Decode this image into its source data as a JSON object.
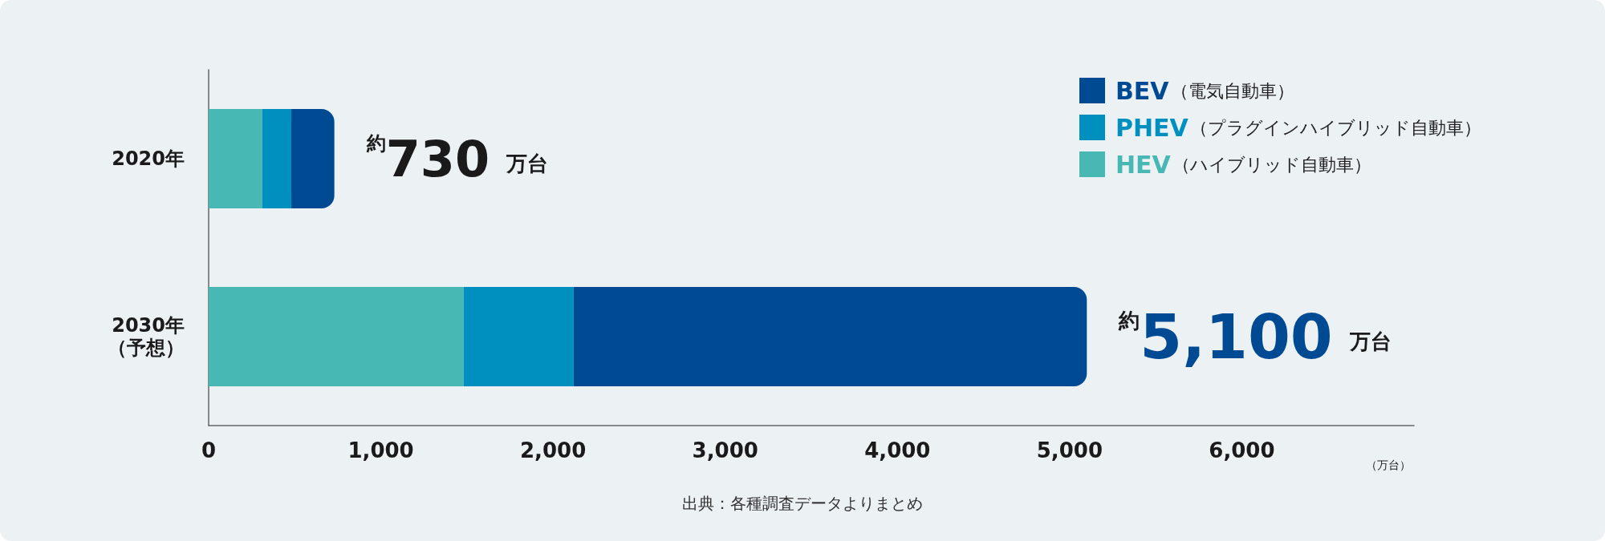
{
  "chart_data": {
    "type": "bar",
    "orientation": "horizontal",
    "stacked": true,
    "categories": [
      "2020年",
      "2030年（予想）"
    ],
    "series": [
      {
        "name": "HEV（ハイブリッド自動車）",
        "color": "#48b8b4",
        "values": [
          310,
          1480
        ]
      },
      {
        "name": "PHEV（プラグインハイブリッド自動車）",
        "color": "#0090c0",
        "values": [
          170,
          640
        ]
      },
      {
        "name": "BEV（電気自動車）",
        "color": "#004a94",
        "values": [
          250,
          2980
        ]
      }
    ],
    "totals": [
      "約730 万台",
      "約5,100 万台"
    ],
    "xlabel": "（万台）",
    "xlim": [
      0,
      7000
    ],
    "xticks": [
      0,
      {
        "value": 1000,
        "label": "1,000"
      },
      {
        "value": 2000,
        "label": "2,000"
      },
      {
        "value": 3000,
        "label": "3,000"
      },
      {
        "value": 4000,
        "label": "4,000"
      },
      {
        "value": 5000,
        "label": "5,000"
      },
      {
        "value": 6000,
        "label": "6,000"
      }
    ],
    "grid": false,
    "legend": "top right",
    "annotations": [
      "出典：各種調査データよりまとめ"
    ]
  }
}
